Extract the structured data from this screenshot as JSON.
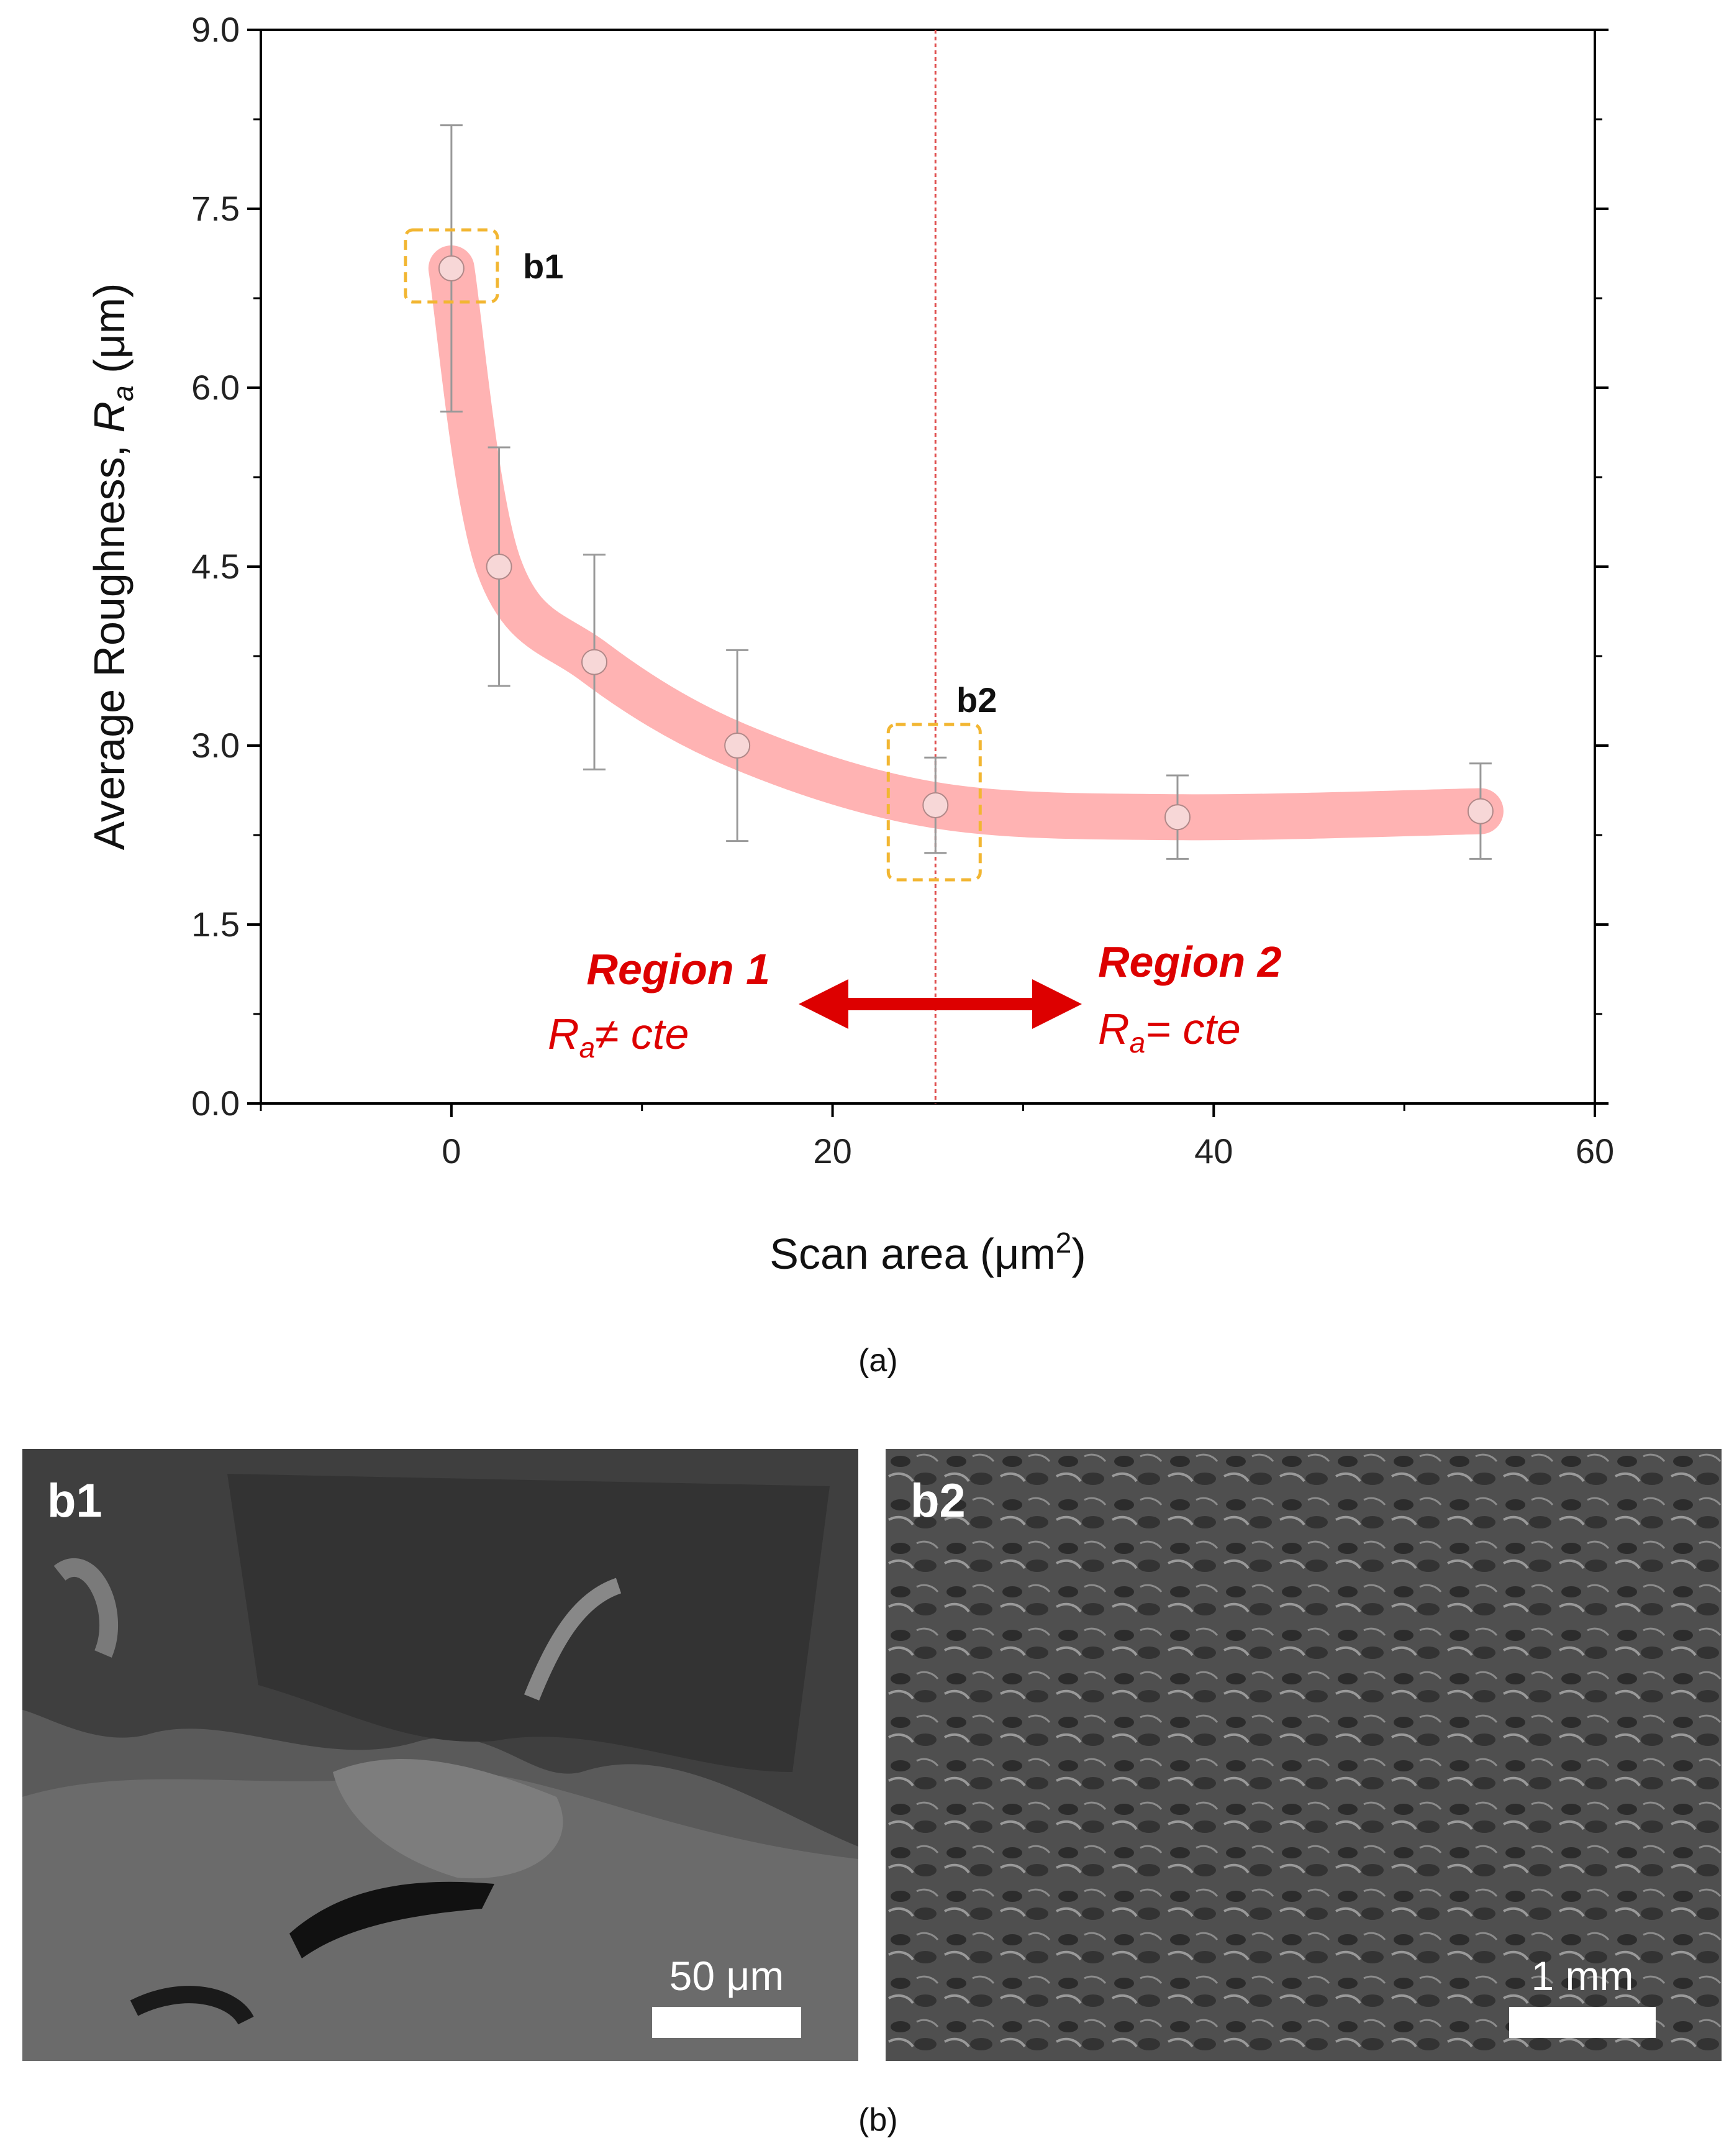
{
  "chart_data": {
    "type": "line",
    "x": [
      0,
      2.5,
      7.5,
      15,
      25.4,
      38.1,
      54
    ],
    "y": [
      7.0,
      4.5,
      3.7,
      3.0,
      2.5,
      2.4,
      2.45
    ],
    "error_low": [
      5.8,
      3.5,
      2.8,
      2.2,
      2.1,
      2.05,
      2.05
    ],
    "error_high": [
      8.2,
      5.5,
      4.6,
      3.8,
      2.9,
      2.75,
      2.85
    ],
    "xlabel": "Scan area (μm²)",
    "ylabel": "Average Roughness, Ra (μm)",
    "xlim": [
      -10,
      60
    ],
    "ylim": [
      0,
      9
    ],
    "x_ticks": [
      0,
      20,
      40,
      60
    ],
    "y_ticks": [
      0.0,
      1.5,
      3.0,
      4.5,
      6.0,
      7.5,
      9.0
    ],
    "x_tick_labels": [
      "0",
      "20",
      "40",
      "60"
    ],
    "y_tick_labels": [
      "0.0",
      "1.5",
      "3.0",
      "4.5",
      "6.0",
      "7.5",
      "9.0"
    ],
    "vertical_line_x": 25.4,
    "grid": false,
    "colors": {
      "curve": "#ffb3b3",
      "marker": "#f7d7d7",
      "annotation": "#dd0000",
      "box": "#f2b632",
      "error": "#999999"
    },
    "annotations": {
      "b1": "b1",
      "b2": "b2",
      "region1_title": "Region 1",
      "region1_eq": "≠ cte",
      "region2_title": "Region 2",
      "region2_eq": "= cte"
    }
  },
  "captions": {
    "a": "(a)",
    "b": "(b)"
  },
  "images": {
    "b1": {
      "label": "b1",
      "scale": "50 μm"
    },
    "b2": {
      "label": "b2",
      "scale": "1 mm"
    }
  }
}
